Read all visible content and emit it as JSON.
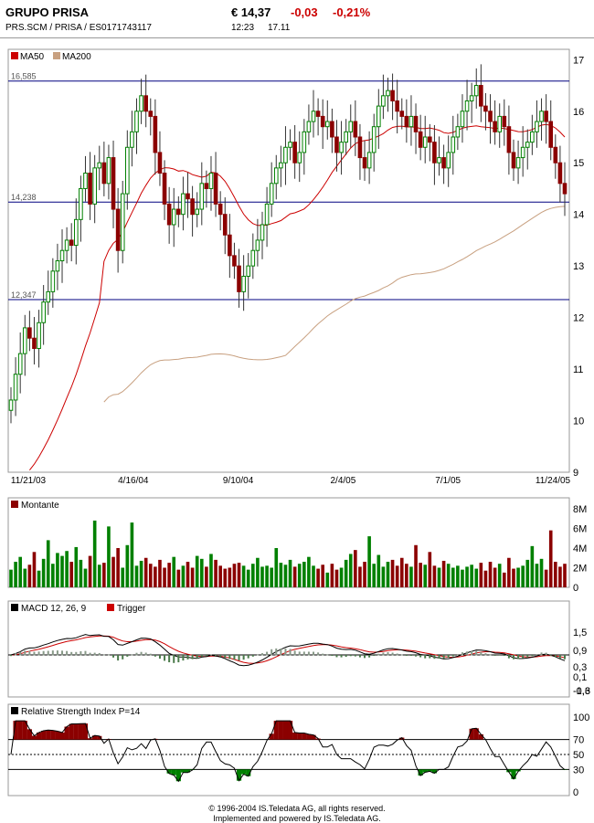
{
  "header": {
    "name": "GRUPO PRISA",
    "price": "€ 14,37",
    "change": "-0,03",
    "change_pct": "-0,21%",
    "sub": "PRS.SCM   /   PRISA   /   ES0171743117",
    "time": "12:23",
    "date": "17.11"
  },
  "colors": {
    "up": "#008000",
    "down": "#8b0000",
    "ma50": "#cc0000",
    "ma200": "#c8a080",
    "hline": "#000080",
    "rsi_over": "#8b0000",
    "rsi_under": "#008000"
  },
  "chart_data": [
    {
      "type": "candlestick",
      "title": "",
      "legend": [
        "MA50",
        "MA200"
      ],
      "x_tick_labels": [
        "11/21/03",
        "4/16/04",
        "9/10/04",
        "2/4/05",
        "7/1/05",
        "11/24/05"
      ],
      "y_ticks": [
        9,
        10,
        11,
        12,
        13,
        14,
        15,
        16,
        17
      ],
      "ylim": [
        9,
        17.2
      ],
      "reference_levels": [
        16.585,
        14.238,
        12.347
      ],
      "reference_labels": [
        "16,585",
        "14,238",
        "12,347"
      ],
      "close": [
        10.4,
        10.9,
        11.3,
        11.8,
        11.6,
        11.4,
        11.9,
        12.3,
        12.5,
        12.9,
        13.1,
        13.3,
        13.5,
        13.4,
        13.9,
        14.5,
        14.8,
        14.2,
        14.9,
        15.0,
        14.6,
        15.1,
        14.1,
        13.3,
        14.4,
        15.3,
        15.6,
        16.0,
        16.3,
        16.0,
        15.9,
        15.2,
        14.8,
        14.2,
        13.8,
        14.1,
        14.0,
        14.4,
        14.3,
        14.0,
        14.1,
        14.6,
        14.5,
        14.8,
        14.2,
        14.0,
        13.6,
        13.2,
        13.0,
        12.5,
        12.8,
        13.0,
        13.3,
        13.5,
        13.8,
        14.2,
        14.6,
        14.9,
        15.0,
        15.3,
        15.4,
        15.0,
        15.2,
        15.6,
        15.8,
        16.0,
        15.9,
        15.7,
        15.8,
        15.5,
        15.2,
        15.4,
        15.6,
        15.8,
        15.5,
        15.1,
        14.9,
        15.2,
        15.7,
        16.1,
        16.3,
        16.4,
        16.2,
        16.0,
        15.9,
        15.7,
        15.9,
        15.6,
        15.3,
        15.5,
        15.4,
        15.0,
        15.1,
        14.9,
        15.2,
        15.5,
        15.7,
        16.0,
        16.2,
        16.3,
        16.5,
        16.1,
        16.0,
        15.8,
        15.6,
        15.9,
        15.7,
        15.2,
        14.9,
        15.1,
        15.3,
        15.4,
        15.6,
        15.8,
        16.0,
        15.8,
        15.3,
        15.0,
        14.6,
        14.4
      ],
      "volume_label": "Montante",
      "volume_ticks": [
        "8M",
        "6M",
        "4M",
        "2M",
        "0"
      ],
      "volume_max_m": 8,
      "volume_m": [
        1.8,
        2.6,
        3.1,
        1.9,
        2.3,
        3.6,
        1.7,
        2.9,
        4.8,
        2.4,
        3.5,
        3.2,
        3.7,
        2.6,
        4.1,
        2.8,
        1.9,
        3.2,
        6.8,
        2.3,
        2.5,
        6.2,
        3.1,
        4.0,
        2.0,
        4.3,
        6.6,
        2.2,
        2.7,
        3.0,
        2.4,
        2.1,
        2.8,
        2.0,
        2.5,
        3.1,
        1.8,
        2.2,
        2.6,
        2.0,
        3.2,
        2.9,
        2.1,
        3.4,
        2.8,
        2.2,
        1.9,
        2.0,
        2.4,
        2.5,
        2.2,
        1.8,
        2.4,
        3.0,
        2.1,
        2.2,
        2.0,
        4.0,
        2.5,
        2.3,
        2.8,
        2.1,
        2.4,
        2.6,
        3.1,
        2.2,
        1.9,
        2.3,
        1.5,
        2.4,
        1.8,
        2.0,
        2.8,
        3.4,
        3.8,
        2.1,
        2.6,
        5.2,
        2.4,
        3.3,
        2.1,
        2.6,
        2.8,
        2.2,
        3.0,
        2.4,
        2.1,
        4.3,
        2.5,
        2.3,
        3.6,
        2.2,
        2.0,
        2.7,
        2.4,
        2.0,
        2.2,
        1.8,
        2.1,
        2.3,
        1.9,
        2.5,
        1.7,
        2.6,
        2.0,
        2.4,
        1.5,
        3.0,
        1.9,
        2.0,
        2.2,
        2.8,
        4.2,
        2.4,
        2.9,
        1.8,
        5.8,
        2.6,
        2.1,
        2.4
      ]
    },
    {
      "type": "line",
      "title": "MACD 12, 26, 9",
      "legend": [
        "MACD 12, 26, 9",
        "Trigger"
      ],
      "y_ticks": [
        "1,5",
        "0,9",
        "0,3",
        "0,1",
        "-0,6",
        "-1,3"
      ]
    },
    {
      "type": "line",
      "title": "Relative Strength Index P=14",
      "legend": [
        "Relative Strength Index P=14"
      ],
      "y_ticks": [
        "100",
        "70",
        "50",
        "30",
        "0"
      ]
    }
  ],
  "footer": {
    "line1": "© 1996-2004 IS.Teledata AG, all rights reserved.",
    "line2": "Implemented and powered by IS.Teledata AG."
  }
}
